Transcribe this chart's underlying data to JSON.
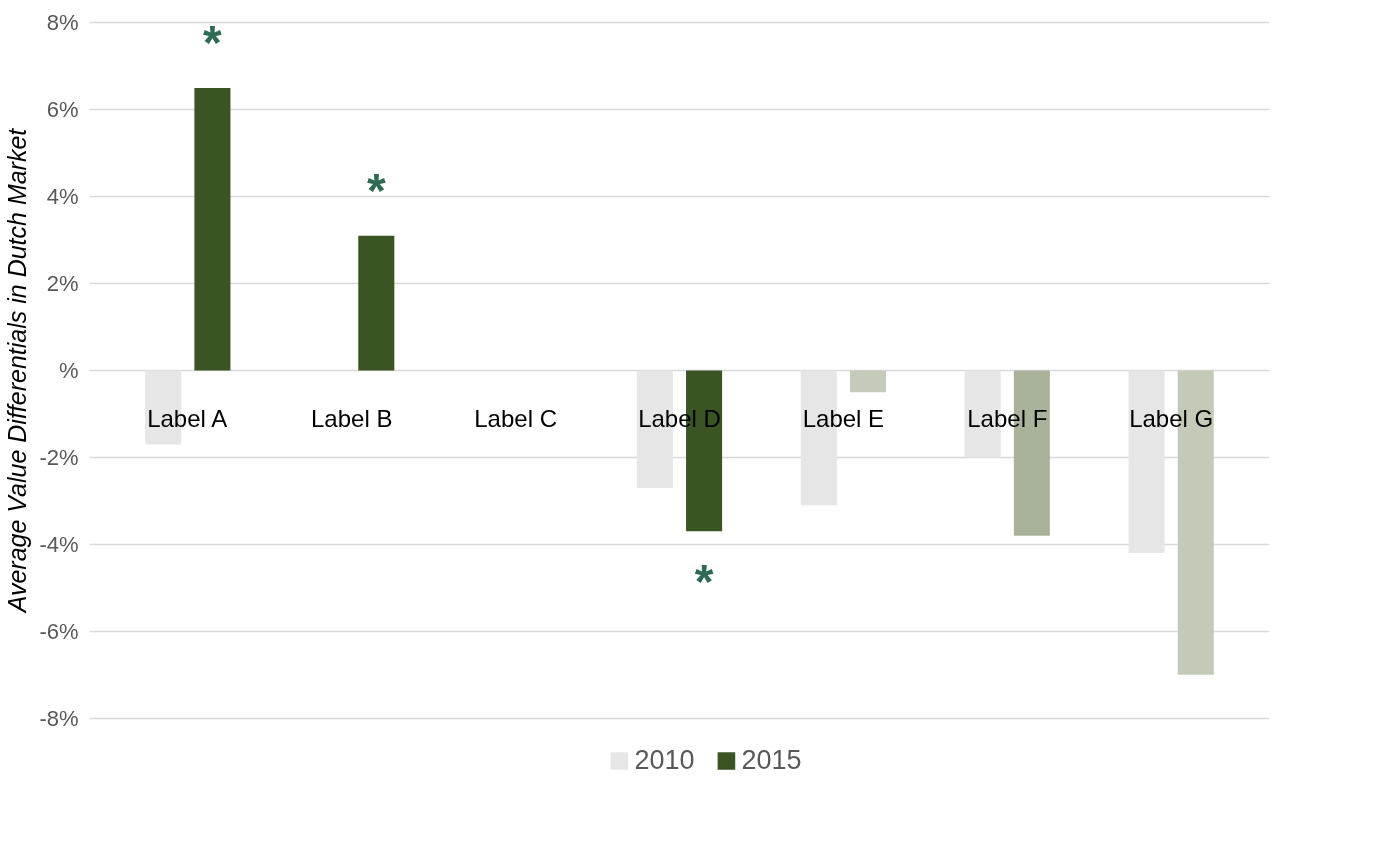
{
  "chart_data": {
    "type": "bar",
    "ylabel": "Average Value Differentials in Dutch Market",
    "categories": [
      "Label A",
      "Label B",
      "Label C",
      "Label D",
      "Label E",
      "Label F",
      "Label G"
    ],
    "series": [
      {
        "name": "2010",
        "color": "#e6e6e6",
        "colors": [
          "#e6e6e6",
          "#e6e6e6",
          "#e6e6e6",
          "#e6e6e6",
          "#e6e6e6",
          "#e6e6e6",
          "#e6e6e6"
        ],
        "values": [
          -1.7,
          null,
          null,
          -2.7,
          -3.1,
          -2.0,
          -4.2
        ]
      },
      {
        "name": "2015",
        "color": "#3a5424",
        "colors": [
          "#3a5424",
          "#3a5424",
          "#3a5424",
          "#3a5424",
          "#c5cbbb",
          "#a9b39c",
          "#c3cbb8"
        ],
        "values": [
          6.5,
          3.1,
          null,
          -3.7,
          -0.5,
          -3.8,
          -7.0
        ],
        "value_labels": [
          "*",
          "*",
          null,
          "*",
          null,
          null,
          null
        ]
      }
    ],
    "ylim": [
      -8.05,
      8.05
    ],
    "yticks": [
      {
        "value": -8,
        "label": "-8%"
      },
      {
        "value": -6,
        "label": "-6%"
      },
      {
        "value": -4,
        "label": "-4%"
      },
      {
        "value": -2,
        "label": "-2%"
      },
      {
        "value": 0,
        "label": "%"
      },
      {
        "value": 2,
        "label": "2%"
      },
      {
        "value": 4,
        "label": "4%"
      },
      {
        "value": 6,
        "label": "6%"
      },
      {
        "value": 8,
        "label": "8%"
      }
    ],
    "grid": "y",
    "legend": "bottom"
  }
}
